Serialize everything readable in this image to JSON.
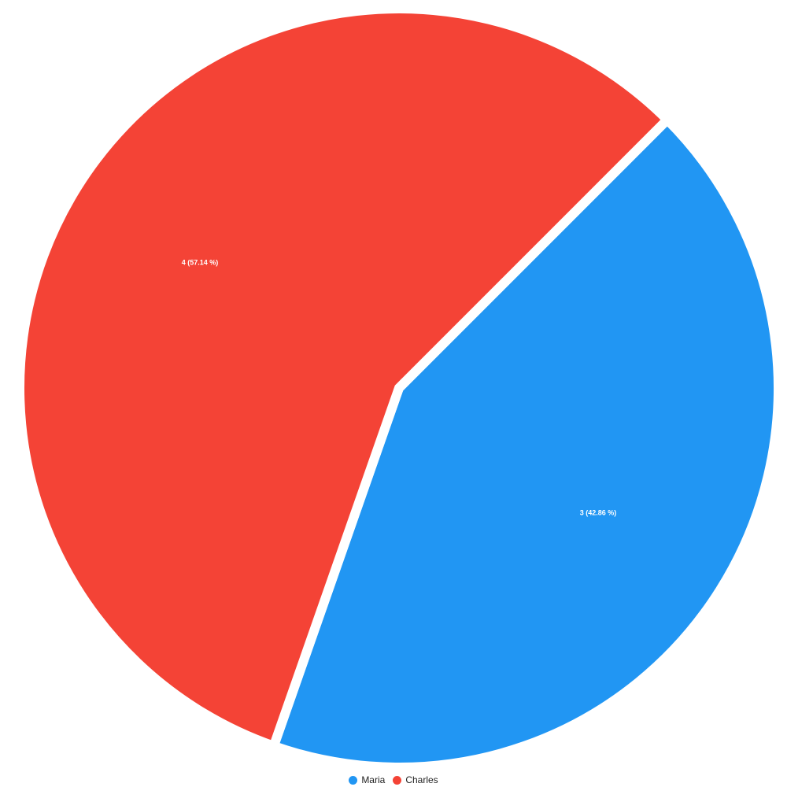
{
  "chart_data": {
    "type": "pie",
    "title": "",
    "legend_position": "bottom",
    "slices": [
      {
        "name": "Maria",
        "value": 3,
        "percent": 42.86,
        "label": "3 (42.86 %)",
        "color": "#2196F3"
      },
      {
        "name": "Charles",
        "value": 4,
        "percent": 57.14,
        "label": "4 (57.14 %)",
        "color": "#F44336"
      }
    ]
  },
  "legend": {
    "items": [
      {
        "label": "Maria",
        "color": "#2196F3"
      },
      {
        "label": "Charles",
        "color": "#F44336"
      }
    ]
  }
}
